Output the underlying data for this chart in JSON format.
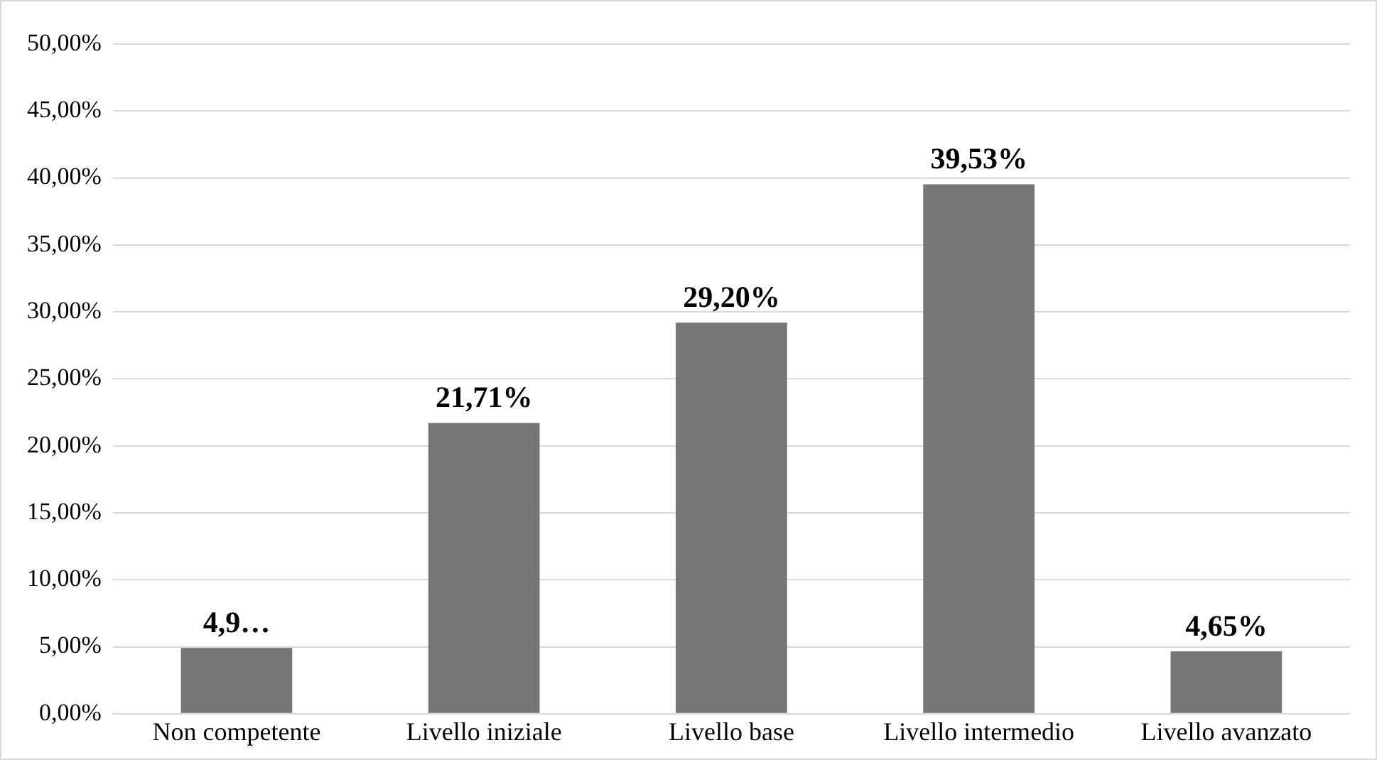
{
  "chart_data": {
    "type": "bar",
    "categories": [
      "Non competente",
      "Livello iniziale",
      "Livello base",
      "Livello intermedio",
      "Livello avanzato"
    ],
    "values": [
      4.91,
      21.71,
      29.2,
      39.53,
      4.65
    ],
    "value_labels": [
      "4,9…",
      "21,71%",
      "29,20%",
      "39,53%",
      "4,65%"
    ],
    "color": "#767676",
    "ylim": [
      0,
      50
    ],
    "yticks": [
      {
        "value": 0,
        "label": "0,00%"
      },
      {
        "value": 5,
        "label": "5,00%"
      },
      {
        "value": 10,
        "label": "10,00%"
      },
      {
        "value": 15,
        "label": "15,00%"
      },
      {
        "value": 20,
        "label": "20,00%"
      },
      {
        "value": 25,
        "label": "25,00%"
      },
      {
        "value": 30,
        "label": "30,00%"
      },
      {
        "value": 35,
        "label": "35,00%"
      },
      {
        "value": 40,
        "label": "40,00%"
      },
      {
        "value": 45,
        "label": "45,00%"
      },
      {
        "value": 50,
        "label": "50,00%"
      }
    ],
    "grid": "y",
    "legend": false
  }
}
